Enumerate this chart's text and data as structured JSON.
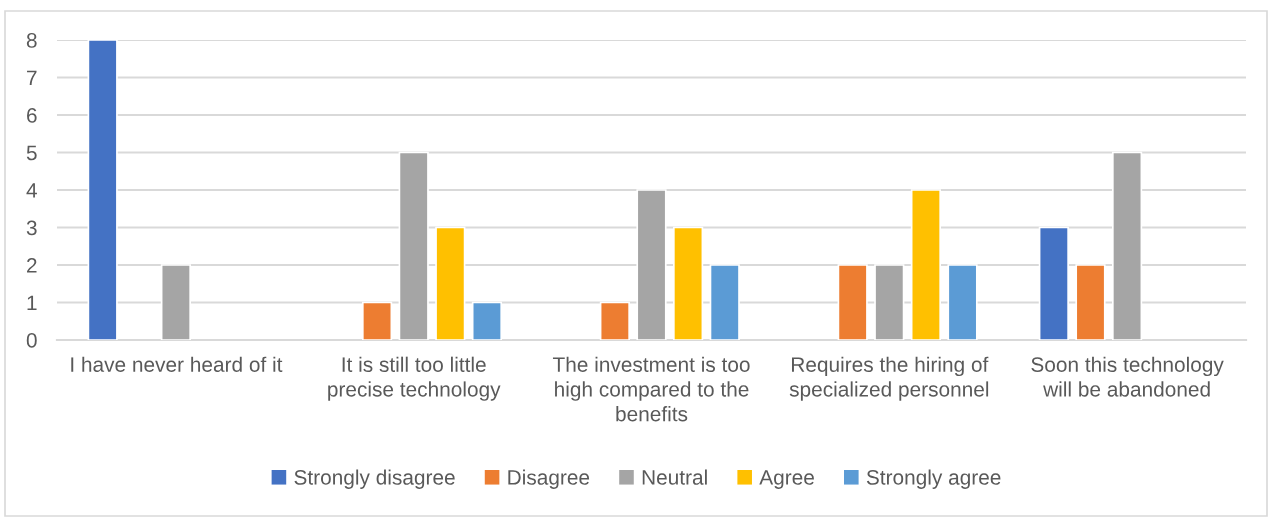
{
  "chart_data": {
    "type": "bar",
    "categories": [
      "I have never heard of it",
      "It is still too little precise technology",
      "The investment is too high compared to the benefits",
      "Requires the hiring of specialized personnel",
      "Soon this technology will be abandoned"
    ],
    "series": [
      {
        "name": "Strongly disagree",
        "color": "#4472c4",
        "values": [
          8,
          0,
          0,
          0,
          3
        ]
      },
      {
        "name": "Disagree",
        "color": "#ed7d31",
        "values": [
          0,
          1,
          1,
          2,
          2
        ]
      },
      {
        "name": "Neutral",
        "color": "#a5a5a5",
        "values": [
          2,
          5,
          4,
          2,
          5
        ]
      },
      {
        "name": "Agree",
        "color": "#ffc000",
        "values": [
          0,
          3,
          3,
          4,
          0
        ]
      },
      {
        "name": "Strongly agree",
        "color": "#5b9bd5",
        "values": [
          0,
          1,
          2,
          2,
          0
        ]
      }
    ],
    "ylim": [
      0,
      8
    ],
    "yticks": [
      0,
      1,
      2,
      3,
      4,
      5,
      6,
      7,
      8
    ],
    "grid": "y",
    "legend": "bottom"
  }
}
